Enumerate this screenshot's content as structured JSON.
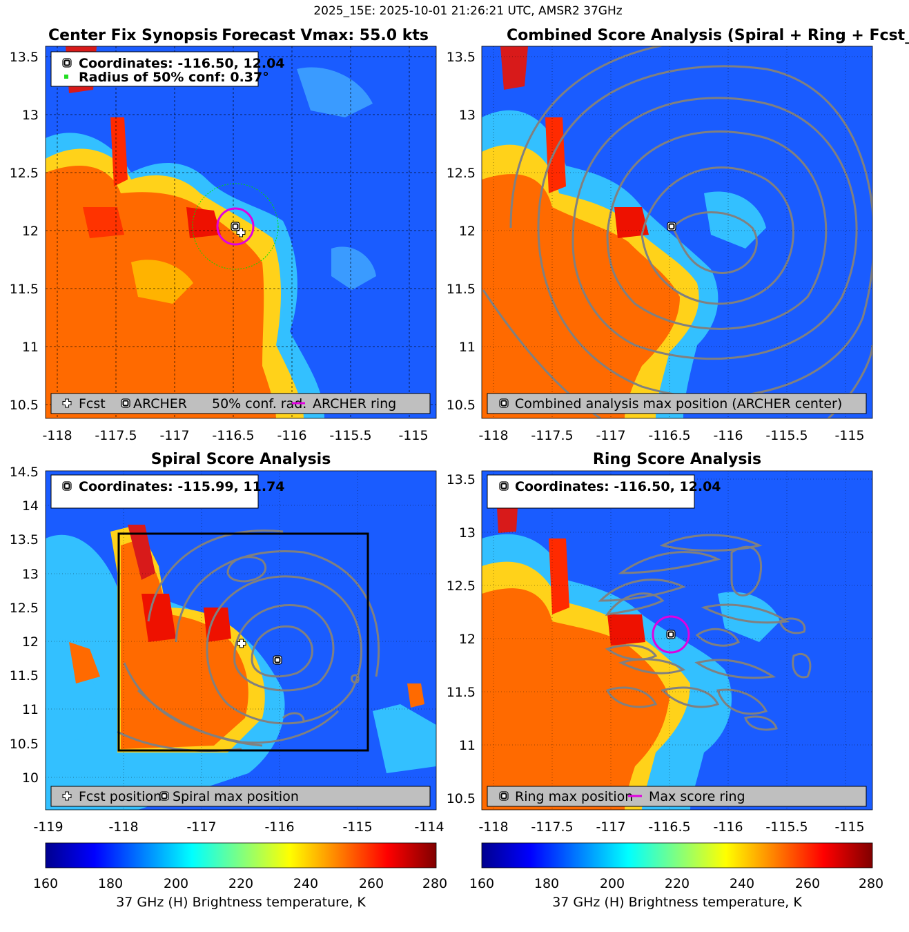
{
  "suptitle": "2025_15E: 2025-10-01 21:26:21 UTC, AMSR2 37GHz",
  "colormap": [
    "#00008f",
    "#0000ff",
    "#0080ff",
    "#00ffff",
    "#80ff80",
    "#ffff00",
    "#ff8000",
    "#ff0000",
    "#800000"
  ],
  "colorbar": {
    "label": "37 GHz (H) Brightness temperature, K",
    "ticks": [
      "160",
      "180",
      "200",
      "220",
      "240",
      "260",
      "280"
    ],
    "range": [
      160,
      280
    ]
  },
  "panels": [
    {
      "id": "synopsis",
      "title": "Center Fix Synopsis",
      "title_right": "Forecast Vmax: 55.0 kts",
      "xticks": [
        "-118",
        "-117.5",
        "-117",
        "-116.5",
        "-116",
        "-115.5",
        "-115"
      ],
      "yticks": [
        "13.5",
        "13",
        "12.5",
        "12",
        "11.5",
        "11",
        "10.5"
      ],
      "xlim": [
        -118.1,
        -114.95
      ],
      "ylim": [
        10.45,
        13.6
      ],
      "info_lines": [
        "Coordinates: -116.50, 12.04",
        "Radius of 50% conf: 0.37°"
      ],
      "legend": [
        "Fcst",
        "ARCHER",
        "50% conf. rad.",
        "ARCHER ring"
      ],
      "archer_center": [
        -116.5,
        12.04
      ],
      "fcst_position": [
        -116.46,
        11.99
      ],
      "conf_radius_deg": 0.37,
      "ring_radius_deg": 0.15
    },
    {
      "id": "combined",
      "title": "Combined Score Analysis (Spiral + Ring + Fcst_Pe",
      "xticks": [
        "-118",
        "-117.5",
        "-117",
        "-116.5",
        "-116",
        "-115.5",
        "-115"
      ],
      "yticks": [
        "13.5",
        "13",
        "12.5",
        "12",
        "11.5",
        "11",
        "10.5"
      ],
      "xlim": [
        -118.1,
        -114.95
      ],
      "ylim": [
        10.45,
        13.6
      ],
      "legend": [
        "Combined analysis max position (ARCHER center)"
      ],
      "max_position": [
        -116.5,
        12.04
      ]
    },
    {
      "id": "spiral",
      "title": "Spiral Score Analysis",
      "xticks": [
        "-119",
        "-118",
        "-117",
        "-116",
        "-115",
        "-114"
      ],
      "yticks": [
        "14.5",
        "14",
        "13.5",
        "13",
        "12.5",
        "12",
        "11.5",
        "11",
        "10.5",
        "10"
      ],
      "xlim": [
        -119,
        -114
      ],
      "ylim": [
        9.55,
        14.5
      ],
      "info_lines": [
        "Coordinates: -115.99, 11.74"
      ],
      "legend": [
        "Fcst position",
        "Spiral max position"
      ],
      "spiral_max": [
        -115.99,
        11.74
      ],
      "fcst_position": [
        -116.46,
        11.99
      ],
      "box": {
        "lon": [
          -118.1,
          -114.9
        ],
        "lat": [
          10.4,
          13.6
        ]
      }
    },
    {
      "id": "ring",
      "title": "Ring Score Analysis",
      "xticks": [
        "-118",
        "-117.5",
        "-117",
        "-116.5",
        "-116",
        "-115.5",
        "-115"
      ],
      "yticks": [
        "13.5",
        "13",
        "12.5",
        "12",
        "11.5",
        "11",
        "10.5"
      ],
      "xlim": [
        -118.1,
        -114.95
      ],
      "ylim": [
        10.45,
        13.6
      ],
      "info_lines": [
        "Coordinates: -116.50, 12.04"
      ],
      "legend": [
        "Ring max position",
        "Max score ring"
      ],
      "ring_max": [
        -116.5,
        12.04
      ],
      "ring_radius_deg": 0.15
    }
  ]
}
